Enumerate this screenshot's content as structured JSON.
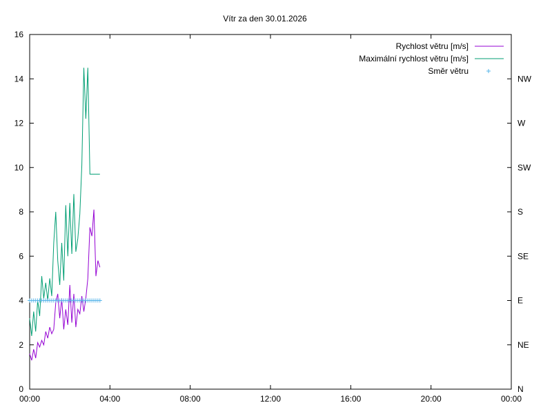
{
  "chart_data": {
    "type": "line",
    "title": "Vítr za den 30.01.2026",
    "xlabel": "",
    "ylabel": "",
    "x_tick_labels": [
      "00:00",
      "04:00",
      "08:00",
      "12:00",
      "16:00",
      "20:00",
      "00:00"
    ],
    "x_range_hours": [
      0,
      24
    ],
    "y_range": [
      0,
      16
    ],
    "y_ticks": [
      0,
      2,
      4,
      6,
      8,
      10,
      12,
      14,
      16
    ],
    "y2_ticks": [
      "N",
      "NE",
      "E",
      "SE",
      "S",
      "SW",
      "W",
      "NW"
    ],
    "grid": false,
    "legend_position": "top-right",
    "series": [
      {
        "name": "Rychlost větru [m/s]",
        "color": "#9400d3",
        "style": "line",
        "x_hours": [
          0.0,
          0.1,
          0.2,
          0.3,
          0.4,
          0.5,
          0.6,
          0.7,
          0.8,
          0.9,
          1.0,
          1.1,
          1.2,
          1.3,
          1.4,
          1.5,
          1.6,
          1.7,
          1.8,
          1.9,
          2.0,
          2.1,
          2.2,
          2.3,
          2.4,
          2.5,
          2.6,
          2.7,
          2.8,
          2.9,
          3.0,
          3.1,
          3.2,
          3.3,
          3.4,
          3.5
        ],
        "values": [
          1.6,
          1.3,
          1.8,
          1.4,
          2.1,
          1.9,
          2.2,
          2.0,
          2.6,
          2.3,
          2.8,
          2.5,
          2.7,
          3.9,
          4.3,
          3.2,
          4.1,
          2.7,
          3.6,
          2.9,
          4.7,
          3.0,
          4.3,
          2.8,
          3.6,
          3.4,
          4.2,
          3.5,
          4.1,
          5.0,
          7.3,
          6.9,
          8.1,
          5.1,
          5.8,
          5.5
        ]
      },
      {
        "name": "Maximální rychlost větru [m/s]",
        "color": "#009e73",
        "style": "line",
        "x_hours": [
          0.0,
          0.1,
          0.2,
          0.3,
          0.4,
          0.5,
          0.6,
          0.7,
          0.8,
          0.9,
          1.0,
          1.1,
          1.2,
          1.3,
          1.4,
          1.5,
          1.6,
          1.7,
          1.8,
          1.9,
          2.0,
          2.1,
          2.2,
          2.3,
          2.4,
          2.5,
          2.6,
          2.7,
          2.8,
          2.9,
          3.0,
          3.1,
          3.2,
          3.3,
          3.4,
          3.5
        ],
        "values": [
          3.2,
          2.4,
          3.5,
          2.6,
          4.0,
          3.3,
          5.1,
          4.1,
          4.8,
          4.0,
          5.0,
          4.2,
          6.6,
          8.0,
          5.8,
          4.7,
          6.6,
          4.9,
          8.3,
          6.0,
          8.4,
          6.1,
          8.8,
          6.2,
          6.8,
          7.9,
          10.1,
          14.5,
          12.2,
          14.5,
          9.7,
          9.7,
          9.7,
          9.7,
          9.7,
          9.7
        ]
      },
      {
        "name": "Směr větru",
        "color": "#56b4e9",
        "style": "points",
        "x_hours": [
          0.0,
          0.1,
          0.2,
          0.3,
          0.4,
          0.5,
          0.6,
          0.7,
          0.8,
          0.9,
          1.0,
          1.1,
          1.2,
          1.3,
          1.4,
          1.5,
          1.6,
          1.7,
          1.8,
          1.9,
          2.0,
          2.1,
          2.2,
          2.3,
          2.4,
          2.5,
          2.6,
          2.7,
          2.8,
          2.9,
          3.0,
          3.1,
          3.2,
          3.3,
          3.4,
          3.5
        ],
        "values": [
          4,
          4,
          4,
          4,
          4,
          4,
          4,
          4,
          4,
          4,
          4,
          4,
          4,
          4,
          4,
          4,
          4,
          4,
          4,
          4,
          4,
          4,
          4,
          4,
          4,
          4,
          4,
          4,
          4,
          4,
          4,
          4,
          4,
          4,
          4,
          4
        ]
      }
    ]
  }
}
